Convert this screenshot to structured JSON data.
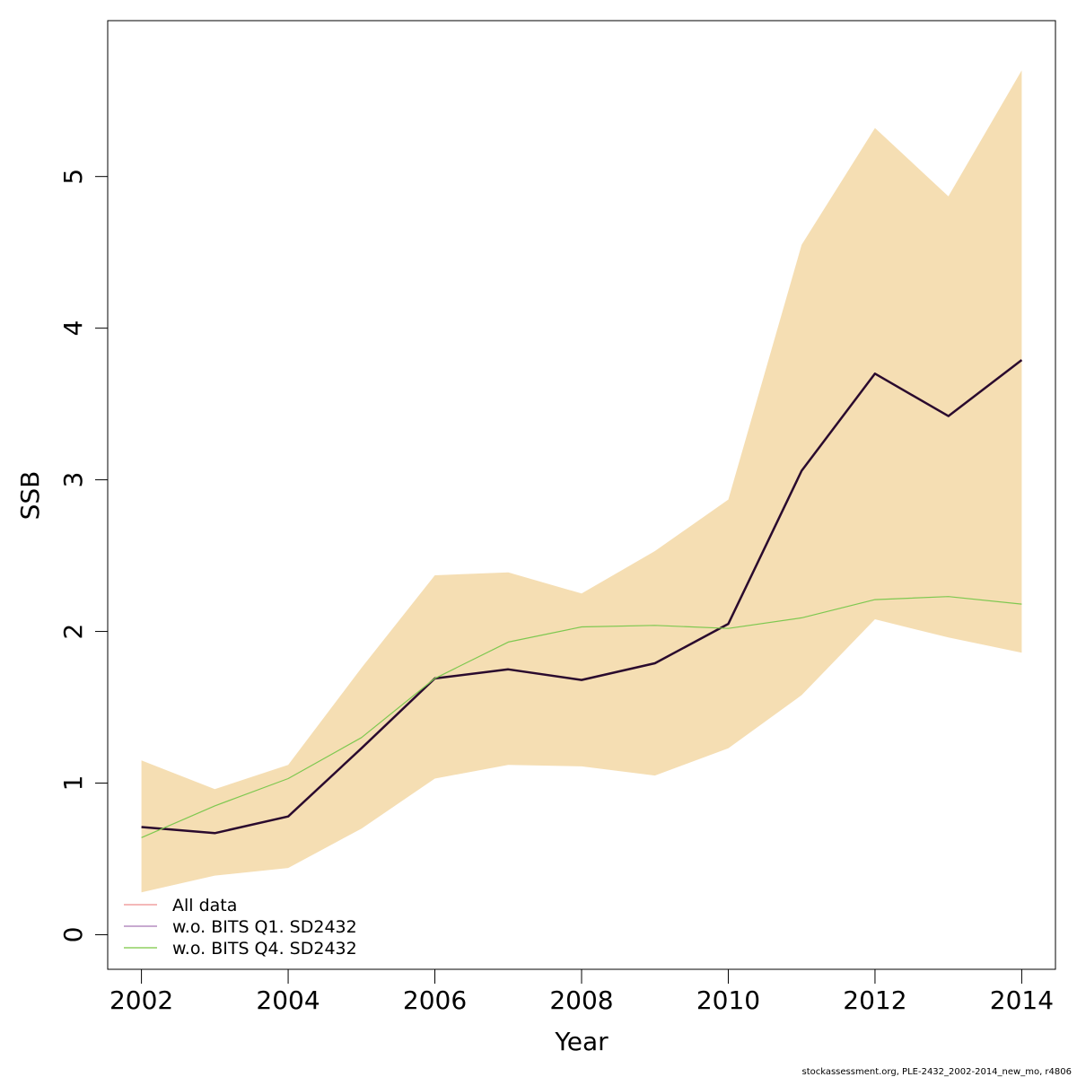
{
  "chart_data": {
    "type": "line",
    "xlabel": "Year",
    "ylabel": "SSB",
    "xlim": [
      2001.54,
      2014.46
    ],
    "ylim": [
      -0.228,
      6.028
    ],
    "x_ticks": [
      2002,
      2004,
      2006,
      2008,
      2010,
      2012,
      2014
    ],
    "y_ticks": [
      0,
      1,
      2,
      3,
      4,
      5
    ],
    "grid": false,
    "legend_position": "bottom-left",
    "x": [
      2002,
      2003,
      2004,
      2005,
      2006,
      2007,
      2008,
      2009,
      2010,
      2011,
      2012,
      2013,
      2014
    ],
    "confidence_band": {
      "color": "#f5deb3",
      "lower": [
        0.28,
        0.39,
        0.44,
        0.7,
        1.03,
        1.12,
        1.11,
        1.05,
        1.23,
        1.58,
        2.08,
        1.96,
        1.86
      ],
      "upper": [
        1.15,
        0.96,
        1.12,
        1.76,
        2.37,
        2.39,
        2.25,
        2.53,
        2.87,
        4.55,
        5.32,
        4.87,
        5.7
      ]
    },
    "series": [
      {
        "name": "All data",
        "color": "#e08080",
        "stroke_width": 1,
        "legend_color": "#f0a0a0",
        "values": [
          0.71,
          0.67,
          0.78,
          1.23,
          1.69,
          1.75,
          1.68,
          1.79,
          2.05,
          3.06,
          3.7,
          3.42,
          3.79
        ]
      },
      {
        "name": "w.o. BITS Q1. SD2432",
        "color": "#2a0a2e",
        "stroke_width": 2.5,
        "legend_color": "#b58ec0",
        "values": [
          0.71,
          0.67,
          0.78,
          1.23,
          1.69,
          1.75,
          1.68,
          1.79,
          2.05,
          3.06,
          3.7,
          3.42,
          3.79
        ]
      },
      {
        "name": "w.o. BITS Q4. SD2432",
        "color": "#7ec850",
        "stroke_width": 1.2,
        "legend_color": "#8fd060",
        "values": [
          0.64,
          0.85,
          1.03,
          1.3,
          1.69,
          1.93,
          2.03,
          2.04,
          2.02,
          2.09,
          2.21,
          2.23,
          2.18
        ]
      }
    ]
  },
  "footer": "stockassessment.org, PLE-2432_2002-2014_new_mo, r4806"
}
